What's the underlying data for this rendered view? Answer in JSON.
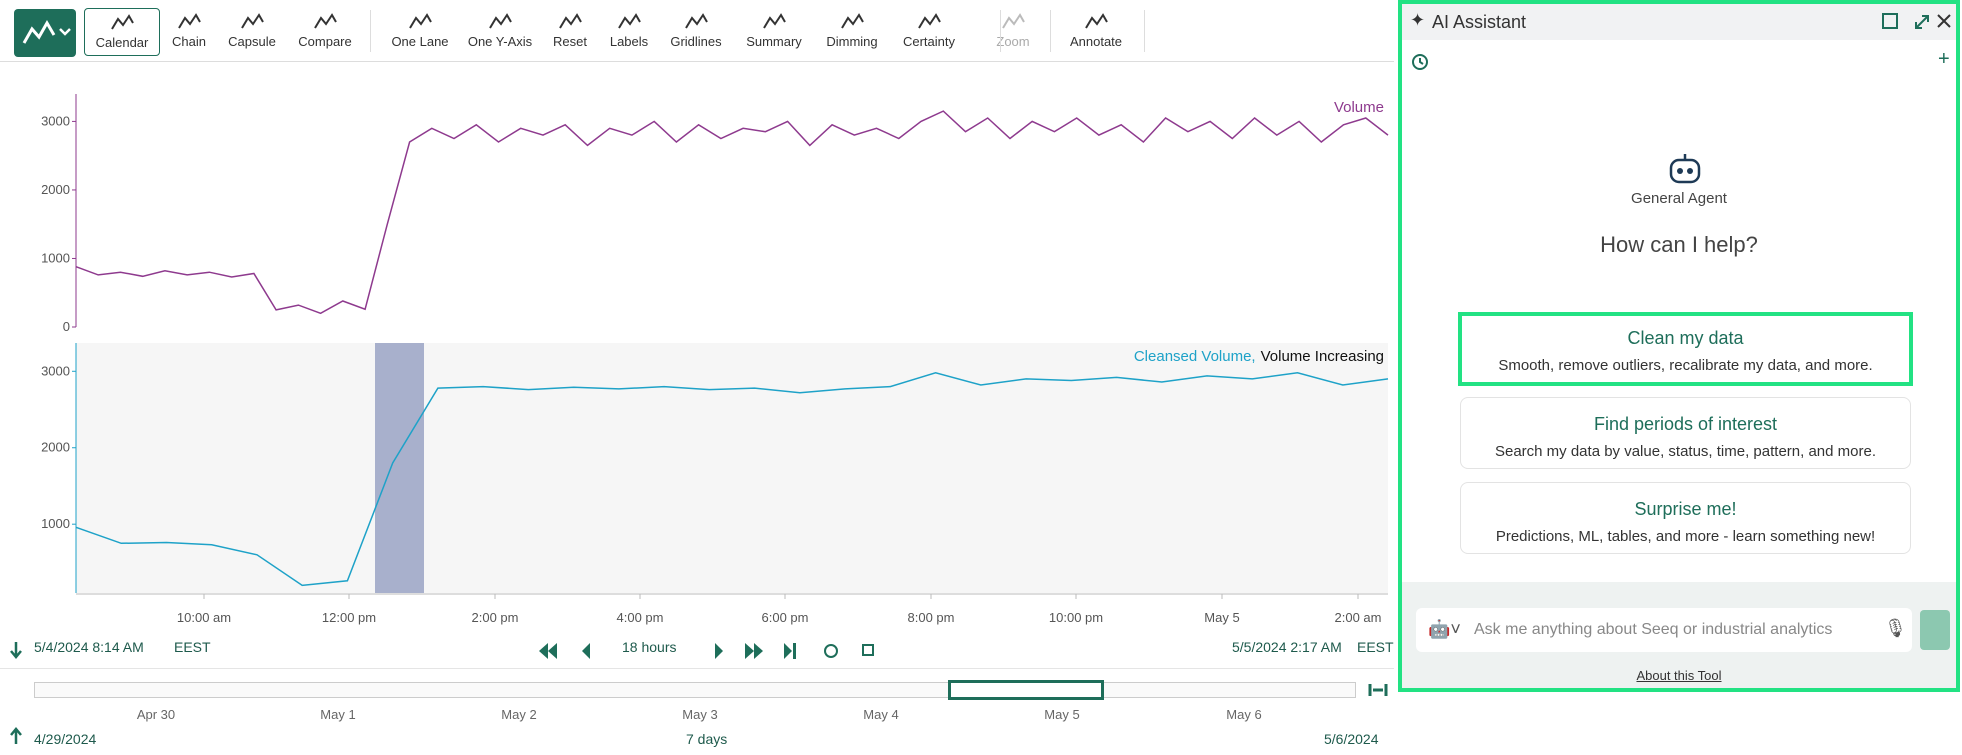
{
  "toolbar": {
    "buttons": [
      "Calendar",
      "Chain",
      "Capsule",
      "Compare",
      "One Lane",
      "One Y-Axis",
      "Reset",
      "Labels",
      "Gridlines",
      "Summary",
      "Dimming",
      "Certainty",
      "Zoom",
      "Annotate"
    ]
  },
  "chart_data": [
    {
      "type": "line",
      "ylim": [
        0,
        3400
      ],
      "yticks": [
        0,
        1000,
        2000,
        3000
      ],
      "series": [
        {
          "name": "Volume",
          "color": "#8e3a8e",
          "values": [
            880,
            760,
            800,
            740,
            820,
            760,
            800,
            730,
            780,
            250,
            320,
            200,
            380,
            260,
            1500,
            2700,
            2900,
            2750,
            2950,
            2700,
            2900,
            2800,
            2950,
            2650,
            2900,
            2800,
            3000,
            2700,
            2950,
            2750,
            2900,
            2850,
            3000,
            2650,
            2950,
            2800,
            2900,
            2750,
            3000,
            3150,
            2850,
            3050,
            2750,
            3000,
            2850,
            3050,
            2800,
            2950,
            2700,
            3050,
            2850,
            3000,
            2750,
            3050,
            2800,
            3000,
            2700,
            2950,
            3050,
            2800
          ]
        }
      ]
    },
    {
      "type": "line",
      "ylim": [
        100,
        3370
      ],
      "yticks": [
        1000,
        2000,
        3000
      ],
      "capsule_name": "Volume Increasing",
      "series": [
        {
          "name": "Cleansed Volume,",
          "color": "#1ea2c8",
          "values": [
            960,
            750,
            760,
            730,
            600,
            200,
            260,
            1800,
            2780,
            2800,
            2760,
            2790,
            2770,
            2800,
            2760,
            2780,
            2720,
            2770,
            2800,
            2980,
            2820,
            2900,
            2880,
            2920,
            2860,
            2940,
            2900,
            2980,
            2820,
            2900
          ]
        }
      ]
    }
  ],
  "time_axis": {
    "labels": [
      "10:00 am",
      "12:00 pm",
      "2:00 pm",
      "4:00 pm",
      "6:00 pm",
      "8:00 pm",
      "10:00 pm",
      "May 5",
      "2:00 am"
    ]
  },
  "display_range": {
    "start": "5/4/2024 8:14 AM",
    "start_tz": "EEST",
    "duration": "18 hours",
    "end": "5/5/2024 2:17 AM",
    "end_tz": "EEST"
  },
  "investigate_range": {
    "labels": [
      "Apr 30",
      "May 1",
      "May 2",
      "May 3",
      "May 4",
      "May 5",
      "May 6"
    ],
    "start": "4/29/2024",
    "duration": "7 days",
    "end": "5/6/2024"
  },
  "assistant": {
    "title": "AI Assistant",
    "agent": "General Agent",
    "prompt": "How can I help?",
    "cards": [
      {
        "title": "Clean my data",
        "description": "Smooth, remove outliers, recalibrate my data, and more."
      },
      {
        "title": "Find periods of interest",
        "description": "Search my data by value, status, time, pattern, and more."
      },
      {
        "title": "Surprise me!",
        "description": "Predictions, ML, tables, and more - learn something new!"
      }
    ],
    "placeholder": "Ask me anything about Seeq or industrial analytics",
    "about": "About this Tool"
  }
}
